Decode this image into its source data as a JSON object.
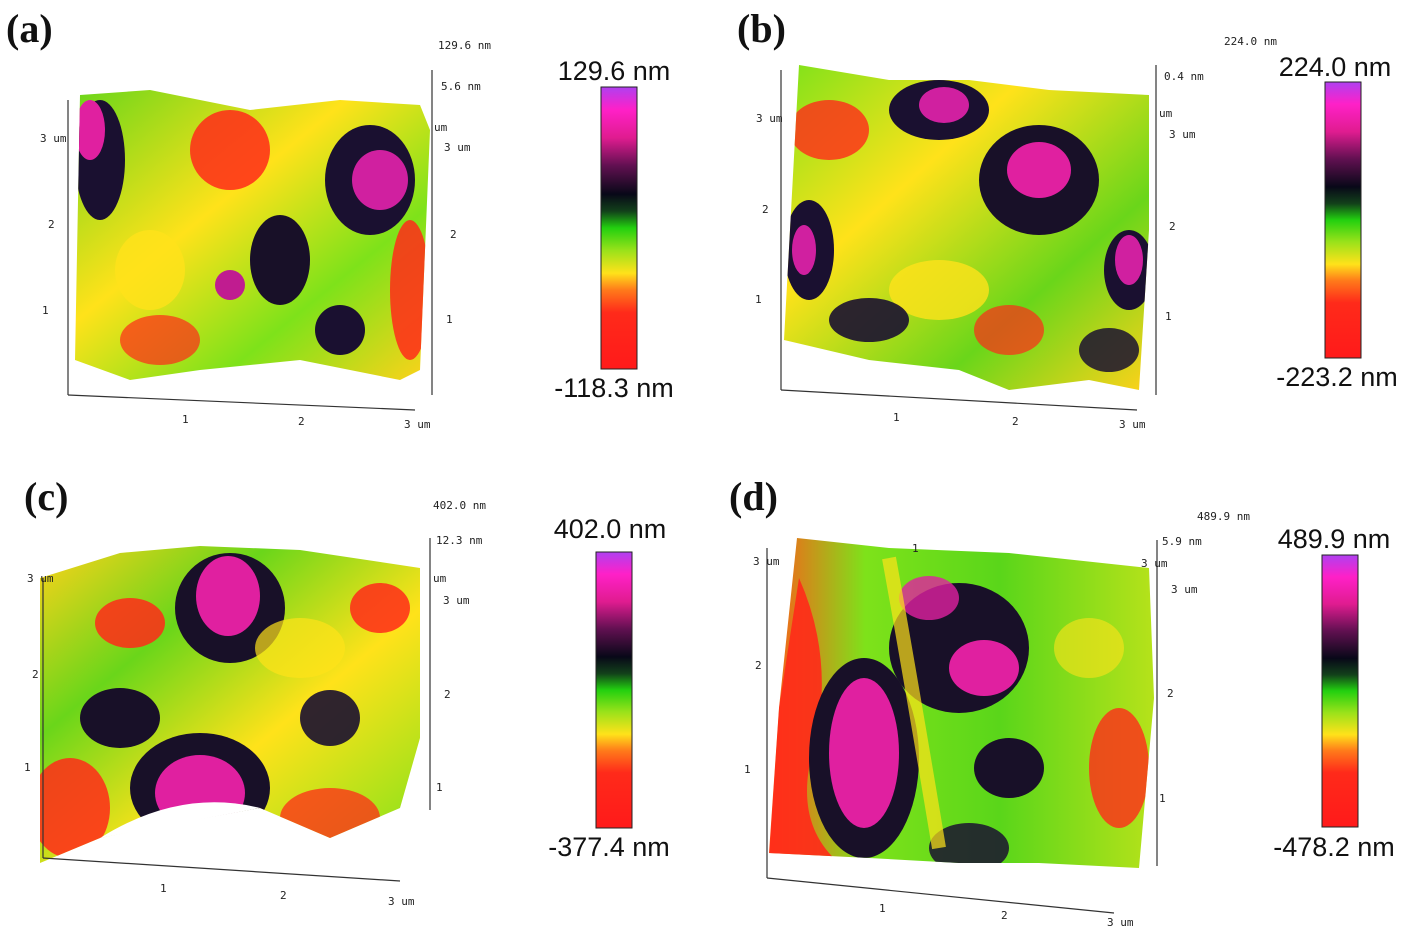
{
  "panels": [
    {
      "label": "(a)",
      "top_height": "129.6 nm",
      "sub_height": "5.6 nm",
      "colorbar_max": "129.6 nm",
      "colorbar_min": "-118.3 nm",
      "left_ticks": [
        "3 um",
        "2",
        "1"
      ],
      "right_ticks": [
        "um",
        "3 um",
        "2",
        "1"
      ],
      "bottom_ticks": [
        "1",
        "2",
        "3 um"
      ]
    },
    {
      "label": "(b)",
      "top_height": "224.0 nm",
      "sub_height": "0.4 nm",
      "colorbar_max": "224.0 nm",
      "colorbar_min": "-223.2 nm",
      "left_ticks": [
        "3 um",
        "2",
        "1"
      ],
      "right_ticks": [
        "um",
        "3 um",
        "2",
        "1"
      ],
      "bottom_ticks": [
        "1",
        "2",
        "3 um"
      ]
    },
    {
      "label": "(c)",
      "top_height": "402.0 nm",
      "sub_height": "12.3 nm",
      "colorbar_max": "402.0 nm",
      "colorbar_min": "-377.4 nm",
      "left_ticks": [
        "3 um",
        "2",
        "1"
      ],
      "right_ticks": [
        "um",
        "3 um",
        "2",
        "1"
      ],
      "bottom_ticks": [
        "1",
        "2",
        "3 um"
      ]
    },
    {
      "label": "(d)",
      "top_height": "489.9 nm",
      "sub_height": "5.9 nm",
      "colorbar_max": "489.9 nm",
      "colorbar_min": "-478.2 nm",
      "left_ticks": [
        "3 um",
        "2",
        "1"
      ],
      "right_ticks": [
        "3 um",
        "3 um",
        "2",
        "1"
      ],
      "bottom_ticks": [
        "1",
        "2",
        "3 um"
      ],
      "top_tick": "1"
    }
  ],
  "colors": {
    "colormap": [
      "#ff1a1a",
      "#ff3a1a",
      "#ffe21a",
      "#66e21a",
      "#22c40f",
      "#101028",
      "#d01b90",
      "#ff20d0",
      "#c040f0"
    ],
    "surface_base": "#8ee22a"
  }
}
